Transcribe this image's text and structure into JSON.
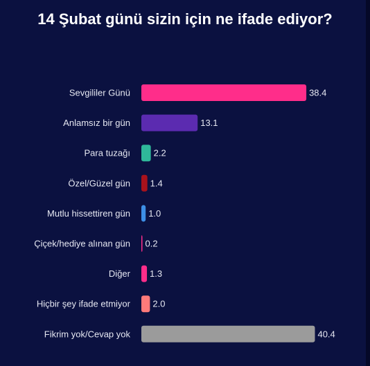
{
  "chart_data": {
    "type": "bar",
    "orientation": "horizontal",
    "title": "14 Şubat günü sizin için ne ifade ediyor?",
    "categories": [
      "Sevgililer Günü",
      "Anlamsız bir gün",
      "Para tuzağı",
      "Özel/Güzel gün",
      "Mutlu hissettiren gün",
      "Çiçek/hediye alınan gün",
      "Diğer",
      "Hiçbir şey ifade etmiyor",
      "Fikrim yok/Cevap yok"
    ],
    "values": [
      38.4,
      13.1,
      2.2,
      1.4,
      1.0,
      0.2,
      1.3,
      2.0,
      40.4
    ],
    "value_labels": [
      "38.4",
      "13.1",
      "2.2",
      "1.4",
      "1.0",
      "0.2",
      "1.3",
      "2.0",
      "40.4"
    ],
    "colors": [
      "#ff2d8a",
      "#5b2bb0",
      "#2fb89a",
      "#a8121c",
      "#3d8fe6",
      "#ff2d8a",
      "#ff2d8a",
      "#ff7a7a",
      "#9b9b9b"
    ],
    "grid": false,
    "legend": "none"
  },
  "style": {
    "background": "#0b1140",
    "text_color": "#ffffff",
    "label_color": "#e6e8f2"
  }
}
